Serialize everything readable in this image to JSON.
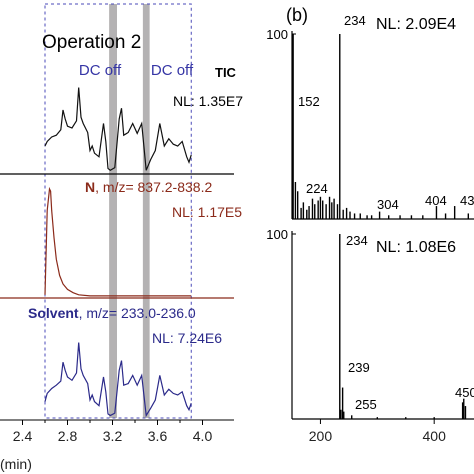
{
  "chart_data": [
    {
      "panel": "",
      "type": "line",
      "title": "Operation 2",
      "xlabel": "(min)",
      "xlim": [
        2.2,
        4.2
      ],
      "xticks": [
        "2.4",
        "2.8",
        "3.2",
        "3.6",
        "4.0"
      ],
      "shaded_regions": [
        {
          "label": "DC off",
          "x": [
            3.17,
            3.24
          ]
        },
        {
          "label": "DC off",
          "x": [
            3.47,
            3.53
          ]
        }
      ],
      "box_x": [
        2.6,
        3.9
      ],
      "series": [
        {
          "name": "TIC",
          "label_prefix": "",
          "label_suffix": "",
          "nl_label": "NL: 1.35E7",
          "color": "#111111",
          "x": [
            2.6,
            2.62,
            2.66,
            2.7,
            2.74,
            2.76,
            2.78,
            2.8,
            2.84,
            2.88,
            2.9,
            2.92,
            2.94,
            2.98,
            3.0,
            3.02,
            3.04,
            3.08,
            3.12,
            3.14,
            3.16,
            3.18,
            3.22,
            3.26,
            3.28,
            3.3,
            3.34,
            3.38,
            3.42,
            3.46,
            3.5,
            3.54,
            3.58,
            3.62,
            3.66,
            3.7,
            3.74,
            3.78,
            3.82,
            3.86,
            3.88,
            3.9
          ],
          "y": [
            30,
            35,
            40,
            42,
            48,
            70,
            60,
            52,
            50,
            58,
            95,
            62,
            55,
            45,
            25,
            30,
            22,
            18,
            55,
            35,
            5,
            3,
            6,
            60,
            72,
            42,
            45,
            55,
            44,
            55,
            3,
            15,
            25,
            55,
            30,
            38,
            32,
            30,
            35,
            18,
            12,
            20
          ]
        },
        {
          "name": "N",
          "label_prefix": "N",
          "label_suffix": ", m/z= 837.2-838.2",
          "nl_label": "NL: 1.17E5",
          "color": "#8b2a1a",
          "x": [
            2.6,
            2.62,
            2.64,
            2.65,
            2.66,
            2.68,
            2.7,
            2.73,
            2.76,
            2.8,
            2.85,
            2.9,
            3.0,
            3.2,
            3.5,
            3.9
          ],
          "y": [
            2,
            80,
            100,
            98,
            80,
            55,
            35,
            20,
            12,
            7,
            4,
            2,
            1,
            1,
            1,
            1
          ]
        },
        {
          "name": "Solvent",
          "label_prefix": "Solvent",
          "label_suffix": ", m/z= 233.0-236.0",
          "nl_label": "NL: 7.24E6",
          "color": "#2b2a8a",
          "x": [
            2.6,
            2.62,
            2.66,
            2.7,
            2.74,
            2.76,
            2.78,
            2.8,
            2.84,
            2.88,
            2.9,
            2.92,
            2.94,
            2.98,
            3.0,
            3.02,
            3.04,
            3.08,
            3.12,
            3.14,
            3.16,
            3.18,
            3.22,
            3.26,
            3.28,
            3.3,
            3.34,
            3.38,
            3.42,
            3.46,
            3.5,
            3.54,
            3.58,
            3.62,
            3.66,
            3.7,
            3.74,
            3.78,
            3.82,
            3.86,
            3.88,
            3.9
          ],
          "y": [
            20,
            30,
            36,
            40,
            45,
            68,
            58,
            50,
            46,
            55,
            92,
            60,
            52,
            42,
            22,
            28,
            20,
            15,
            50,
            32,
            5,
            3,
            6,
            58,
            70,
            40,
            42,
            52,
            40,
            52,
            3,
            12,
            22,
            52,
            28,
            35,
            30,
            28,
            32,
            15,
            10,
            18
          ]
        }
      ]
    },
    {
      "panel": "(b)",
      "type": "bar",
      "xlim": [
        150,
        470
      ],
      "xticks": [
        "200",
        "400"
      ],
      "yticks": [
        "100"
      ],
      "spectra": [
        {
          "nl_label": "NL: 2.09E4",
          "peak_labels": [
            "234",
            "152",
            "224",
            "304",
            "404",
            "43"
          ],
          "x": [
            152,
            156,
            160,
            166,
            170,
            176,
            180,
            186,
            190,
            196,
            200,
            204,
            210,
            216,
            220,
            224,
            230,
            234,
            240,
            246,
            252,
            260,
            270,
            282,
            290,
            304,
            320,
            340,
            360,
            380,
            404,
            420,
            436,
            460
          ],
          "y": [
            100,
            20,
            15,
            6,
            9,
            5,
            7,
            11,
            8,
            10,
            12,
            10,
            8,
            12,
            9,
            11,
            8,
            100,
            5,
            6,
            4,
            3,
            3,
            2,
            2,
            4,
            2,
            2,
            2,
            2,
            7,
            3,
            7,
            3
          ]
        },
        {
          "nl_label": "NL: 1.08E6",
          "peak_labels": [
            "234",
            "239",
            "255",
            "450"
          ],
          "x": [
            234,
            236,
            239,
            241,
            255,
            300,
            350,
            400,
            450,
            452,
            455
          ],
          "y": [
            100,
            5,
            17,
            4,
            2,
            1,
            1,
            1,
            9,
            11,
            7
          ]
        }
      ]
    }
  ]
}
